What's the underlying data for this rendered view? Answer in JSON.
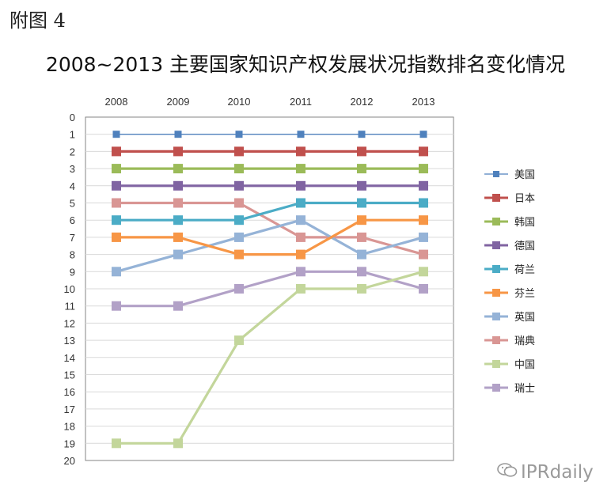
{
  "figure_label": "附图 4",
  "watermark": {
    "text": "IPRdaily",
    "icon": "wechat-icon"
  },
  "chart_data": {
    "type": "line",
    "title": "2008~2013 主要国家知识产权发展状况指数排名变化情况",
    "xlabel": "",
    "ylabel": "",
    "categories": [
      "2008",
      "2009",
      "2010",
      "2011",
      "2012",
      "2013"
    ],
    "y_ticks": [
      "0",
      "1",
      "2",
      "3",
      "4",
      "5",
      "6",
      "7",
      "8",
      "9",
      "10",
      "11",
      "12",
      "13",
      "14",
      "15",
      "16",
      "17",
      "18",
      "19",
      "20"
    ],
    "ylim": [
      0,
      20
    ],
    "y_inverted": true,
    "grid": true,
    "legend_position": "right",
    "series": [
      {
        "name": "美国",
        "color": "#4f81bd",
        "values": [
          1,
          1,
          1,
          1,
          1,
          1
        ]
      },
      {
        "name": "日本",
        "color": "#c0504d",
        "values": [
          2,
          2,
          2,
          2,
          2,
          2
        ]
      },
      {
        "name": "韩国",
        "color": "#9bbb59",
        "values": [
          3,
          3,
          3,
          3,
          3,
          3
        ]
      },
      {
        "name": "德国",
        "color": "#8064a2",
        "values": [
          4,
          4,
          4,
          4,
          4,
          4
        ]
      },
      {
        "name": "荷兰",
        "color": "#4bacc6",
        "values": [
          6,
          6,
          6,
          5,
          5,
          5
        ]
      },
      {
        "name": "芬兰",
        "color": "#f79646",
        "values": [
          7,
          7,
          8,
          8,
          6,
          6
        ]
      },
      {
        "name": "英国",
        "color": "#95b3d7",
        "values": [
          9,
          8,
          7,
          6,
          8,
          7
        ]
      },
      {
        "name": "瑞典",
        "color": "#d99694",
        "values": [
          5,
          5,
          5,
          7,
          7,
          8
        ]
      },
      {
        "name": "中国",
        "color": "#c3d69b",
        "values": [
          19,
          19,
          13,
          10,
          10,
          9
        ]
      },
      {
        "name": "瑞士",
        "color": "#b2a1c7",
        "values": [
          11,
          11,
          10,
          9,
          9,
          10
        ]
      }
    ]
  }
}
